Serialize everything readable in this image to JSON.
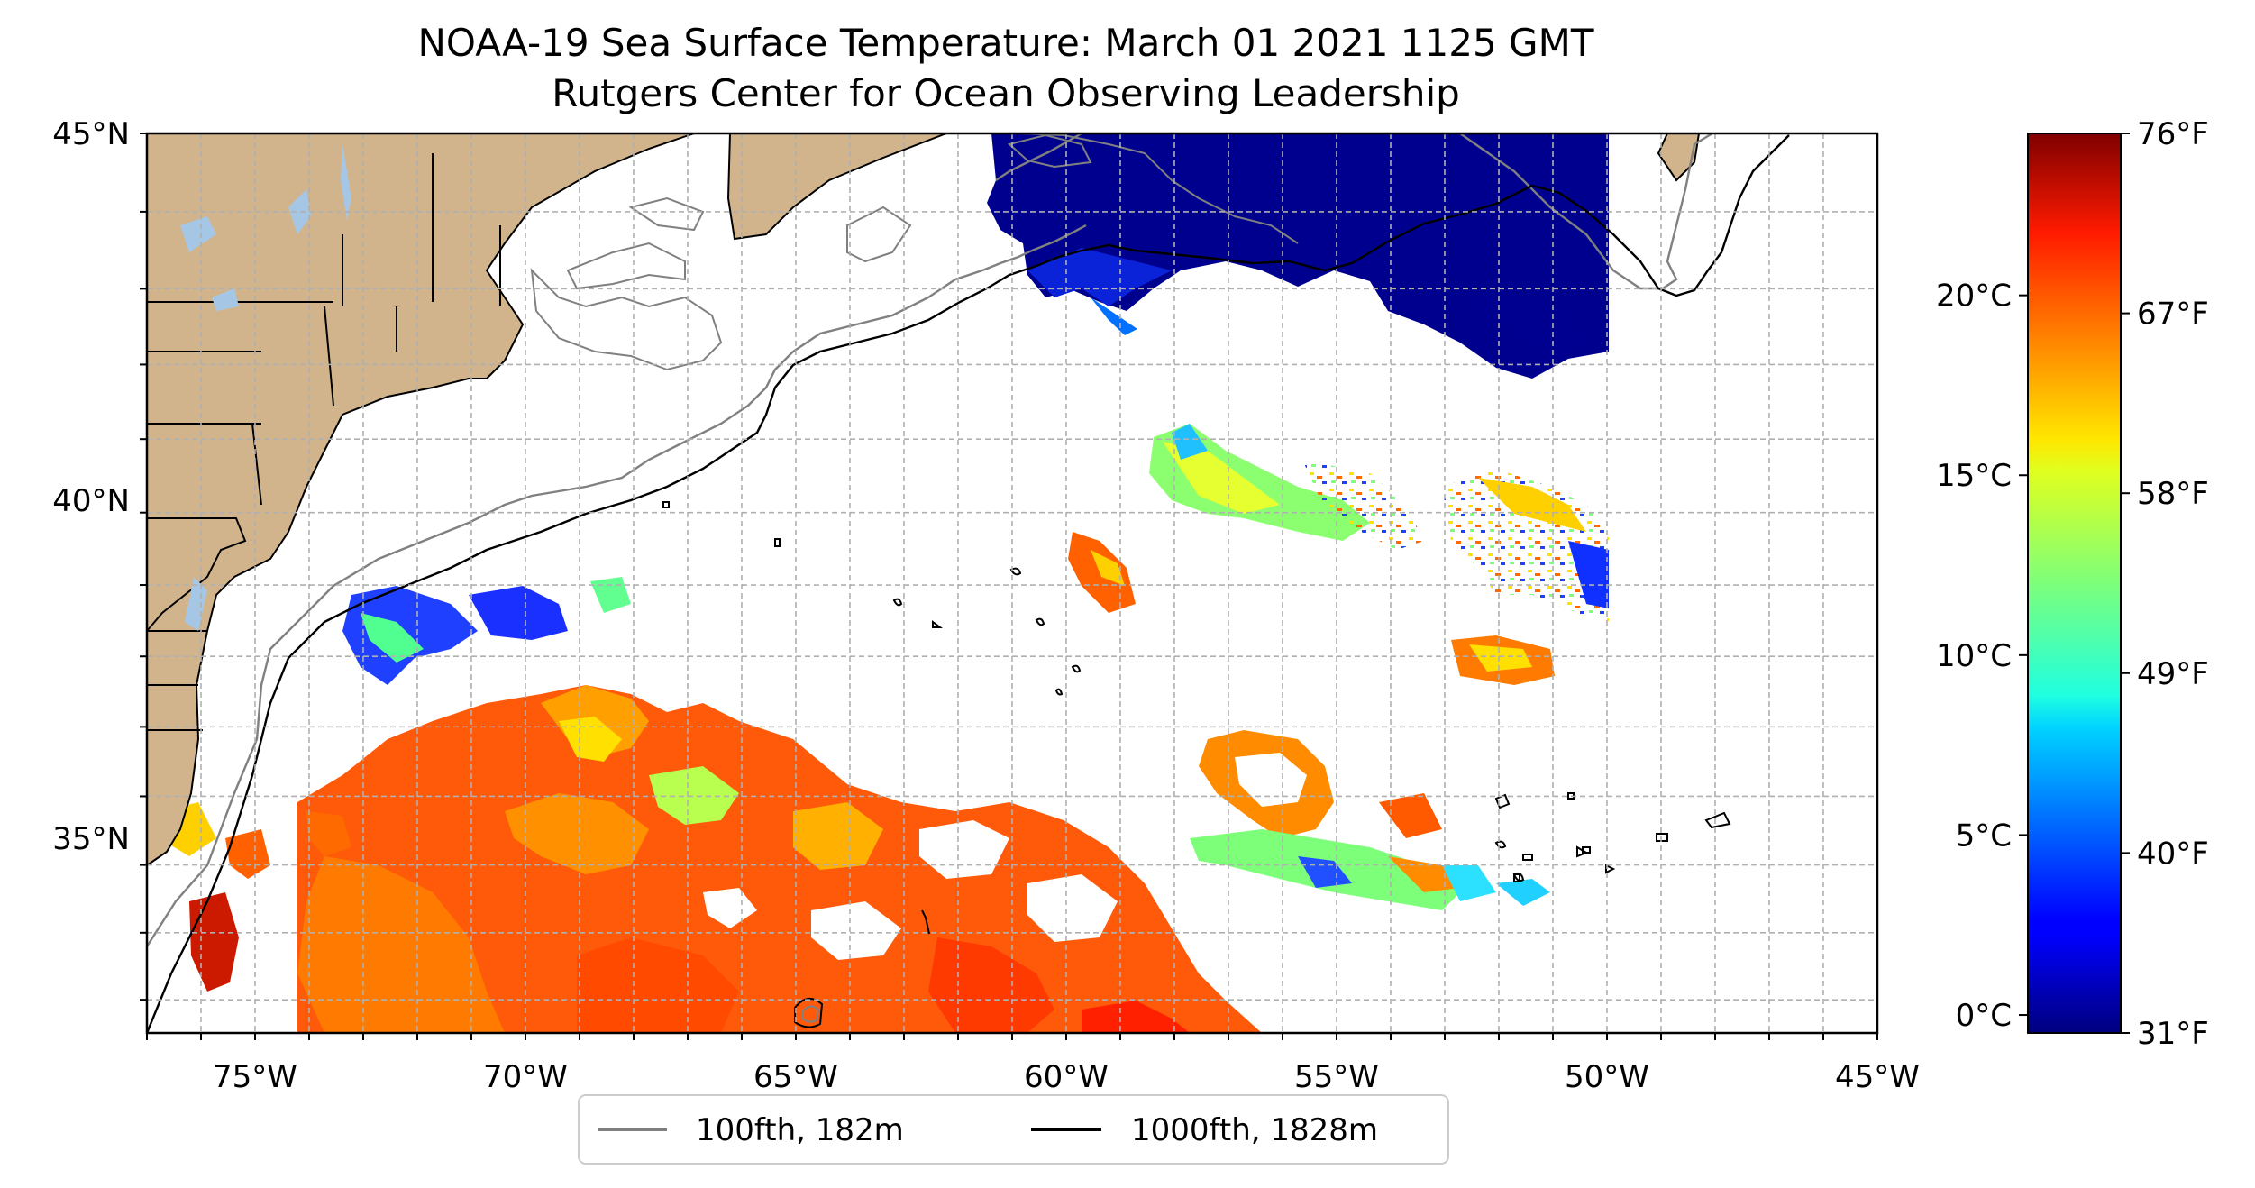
{
  "title": {
    "line1": "NOAA-19 Sea Surface Temperature: March 01 2021 1125 GMT",
    "line2": "Rutgers Center for Ocean Observing Leadership"
  },
  "map": {
    "lon_range": [
      -77,
      -45
    ],
    "lat_range": [
      32.5,
      45
    ],
    "lon_ticks": [
      {
        "value": -75,
        "label": "75°W"
      },
      {
        "value": -70,
        "label": "70°W"
      },
      {
        "value": -65,
        "label": "65°W"
      },
      {
        "value": -60,
        "label": "60°W"
      },
      {
        "value": -55,
        "label": "55°W"
      },
      {
        "value": -50,
        "label": "50°W"
      },
      {
        "value": -45,
        "label": "45°W"
      }
    ],
    "lat_ticks": [
      {
        "value": 45,
        "label": "45°N"
      },
      {
        "value": 40,
        "label": "40°N"
      },
      {
        "value": 35,
        "label": "35°N"
      }
    ],
    "gridlines": true,
    "grid_step_deg": 1,
    "land_color": "#d2b48c",
    "lake_color": "#a6c6e6",
    "ocean_color": "#ffffff"
  },
  "legend": {
    "placement": "bottom-center",
    "items": [
      {
        "label": "100fth, 182m",
        "color": "#808080"
      },
      {
        "label": "1000fth, 1828m",
        "color": "#000000"
      }
    ]
  },
  "colorbar": {
    "colormap": "jet",
    "range_c": [
      -0.5,
      24.5
    ],
    "celsius_ticks": [
      {
        "value": 0,
        "label": "0°C"
      },
      {
        "value": 5,
        "label": "5°C"
      },
      {
        "value": 10,
        "label": "10°C"
      },
      {
        "value": 15,
        "label": "15°C"
      },
      {
        "value": 20,
        "label": "20°C"
      }
    ],
    "fahrenheit_ticks": [
      {
        "label": "31°F"
      },
      {
        "label": "40°F"
      },
      {
        "label": "49°F"
      },
      {
        "label": "58°F"
      },
      {
        "label": "67°F"
      },
      {
        "label": "76°F"
      }
    ]
  }
}
